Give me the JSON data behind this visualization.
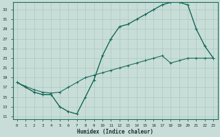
{
  "xlabel": "Humidex (Indice chaleur)",
  "bg_color": "#c8ddd8",
  "grid_color": "#a8c8c0",
  "line_color": "#1a6b5a",
  "xlim": [
    -0.5,
    23.5
  ],
  "ylim": [
    10.5,
    34.5
  ],
  "xticks": [
    0,
    1,
    2,
    3,
    4,
    5,
    6,
    7,
    8,
    9,
    10,
    11,
    12,
    13,
    14,
    15,
    16,
    17,
    18,
    19,
    20,
    21,
    22,
    23
  ],
  "yticks": [
    11,
    13,
    15,
    17,
    19,
    21,
    23,
    25,
    27,
    29,
    31,
    33
  ],
  "line1_x": [
    0,
    1,
    2,
    3,
    4,
    5,
    6,
    7,
    8,
    9,
    10,
    11,
    12,
    13,
    14,
    15,
    16,
    17,
    18,
    19,
    20,
    21,
    22,
    23
  ],
  "line1_y": [
    18,
    17,
    16,
    15.5,
    15.5,
    13,
    12,
    11.5,
    15,
    18.5,
    23.5,
    27,
    29.5,
    30,
    31,
    32,
    33,
    34,
    34.5,
    34.5,
    34,
    29,
    25.5,
    23
  ],
  "line2_x": [
    0,
    2,
    3,
    4,
    5,
    6,
    7,
    9,
    10,
    11,
    12,
    13,
    14,
    15,
    16,
    17,
    18,
    19,
    20,
    21,
    22,
    23
  ],
  "line2_y": [
    18,
    16,
    15.5,
    15.5,
    13,
    12,
    11.5,
    18.5,
    23.5,
    27,
    29.5,
    30,
    31,
    32,
    33,
    34,
    34.5,
    34.5,
    34,
    29,
    25.5,
    23
  ],
  "line3_x": [
    0,
    1,
    2,
    3,
    4,
    5,
    6,
    7,
    8,
    9,
    10,
    11,
    12,
    13,
    14,
    15,
    16,
    17,
    18,
    19,
    20,
    21,
    22,
    23
  ],
  "line3_y": [
    18,
    17.2,
    16.5,
    16,
    15.8,
    16,
    17,
    18,
    19,
    19.5,
    20,
    20.5,
    21,
    21.5,
    22,
    22.5,
    23,
    23.5,
    22,
    22.5,
    23,
    23,
    23,
    23
  ],
  "marker_size": 1.8,
  "linewidth": 0.8
}
